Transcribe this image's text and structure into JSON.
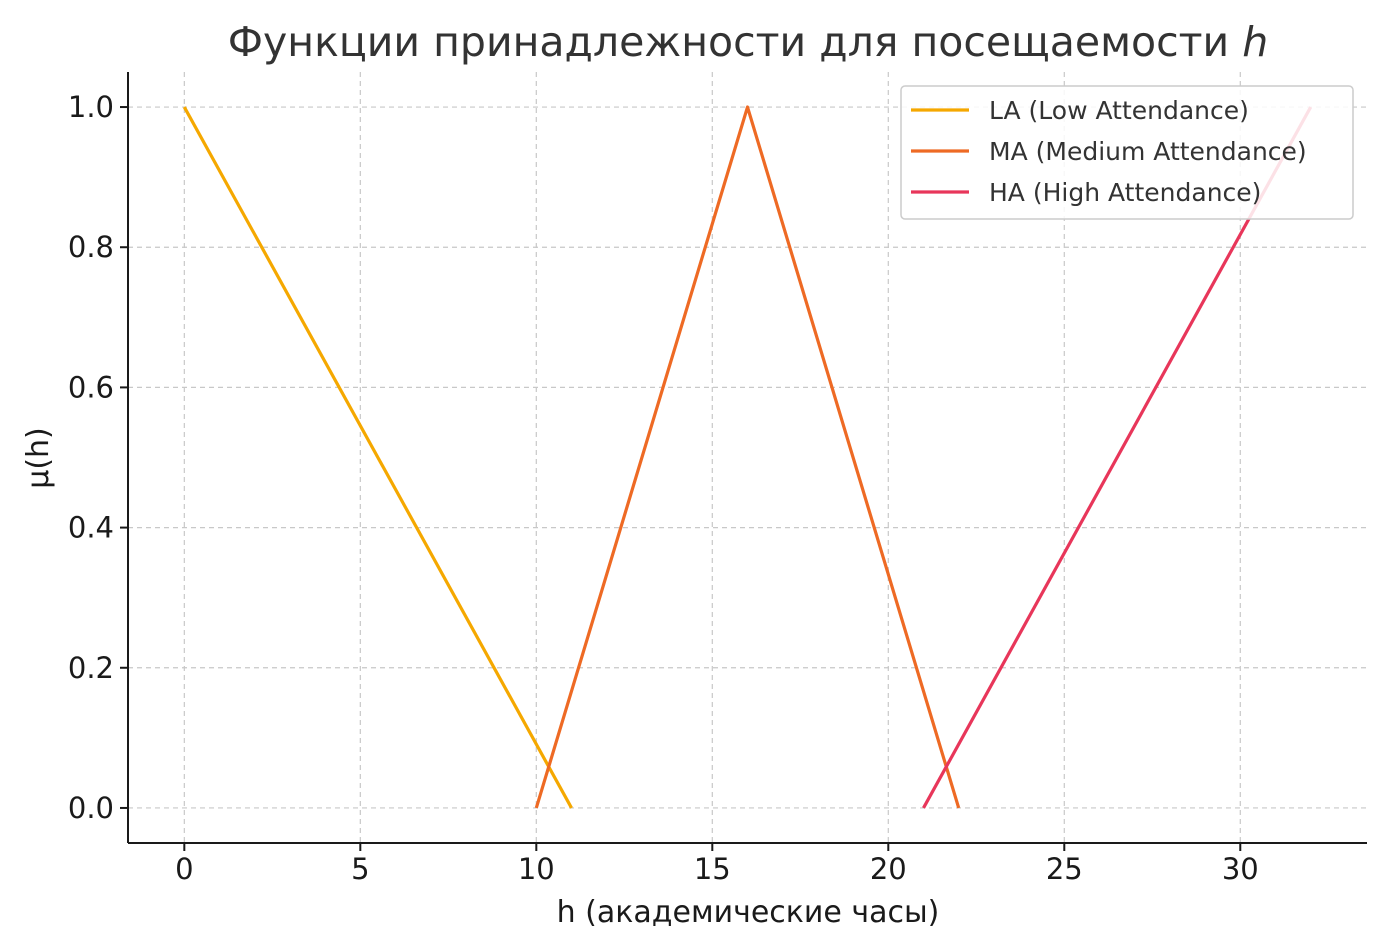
{
  "chart_data": {
    "type": "line",
    "title": "Функции принадлежности для посещаемости",
    "title_var": "h",
    "xlabel": "h (академические часы)",
    "ylabel": "μ(h)",
    "xlim": [
      -1.6,
      33.6
    ],
    "ylim": [
      -0.05,
      1.05
    ],
    "xticks": [
      0,
      5,
      10,
      15,
      20,
      25,
      30
    ],
    "xtick_labels": [
      "0",
      "5",
      "10",
      "15",
      "20",
      "25",
      "30"
    ],
    "yticks": [
      0.0,
      0.2,
      0.4,
      0.6,
      0.8,
      1.0
    ],
    "ytick_labels": [
      "0.0",
      "0.2",
      "0.4",
      "0.6",
      "0.8",
      "1.0"
    ],
    "grid": true,
    "legend_position": "top-right",
    "series": [
      {
        "name": "LA (Low Attendance)",
        "color": "#f5a800",
        "x": [
          0,
          11
        ],
        "y": [
          1.0,
          0.0
        ]
      },
      {
        "name": "MA (Medium Attendance)",
        "color": "#ee6a24",
        "x": [
          10,
          16,
          22
        ],
        "y": [
          0.0,
          1.0,
          0.0
        ]
      },
      {
        "name": "HA (High Attendance)",
        "color": "#e8365a",
        "x": [
          21,
          32
        ],
        "y": [
          0.0,
          1.0
        ]
      }
    ]
  }
}
